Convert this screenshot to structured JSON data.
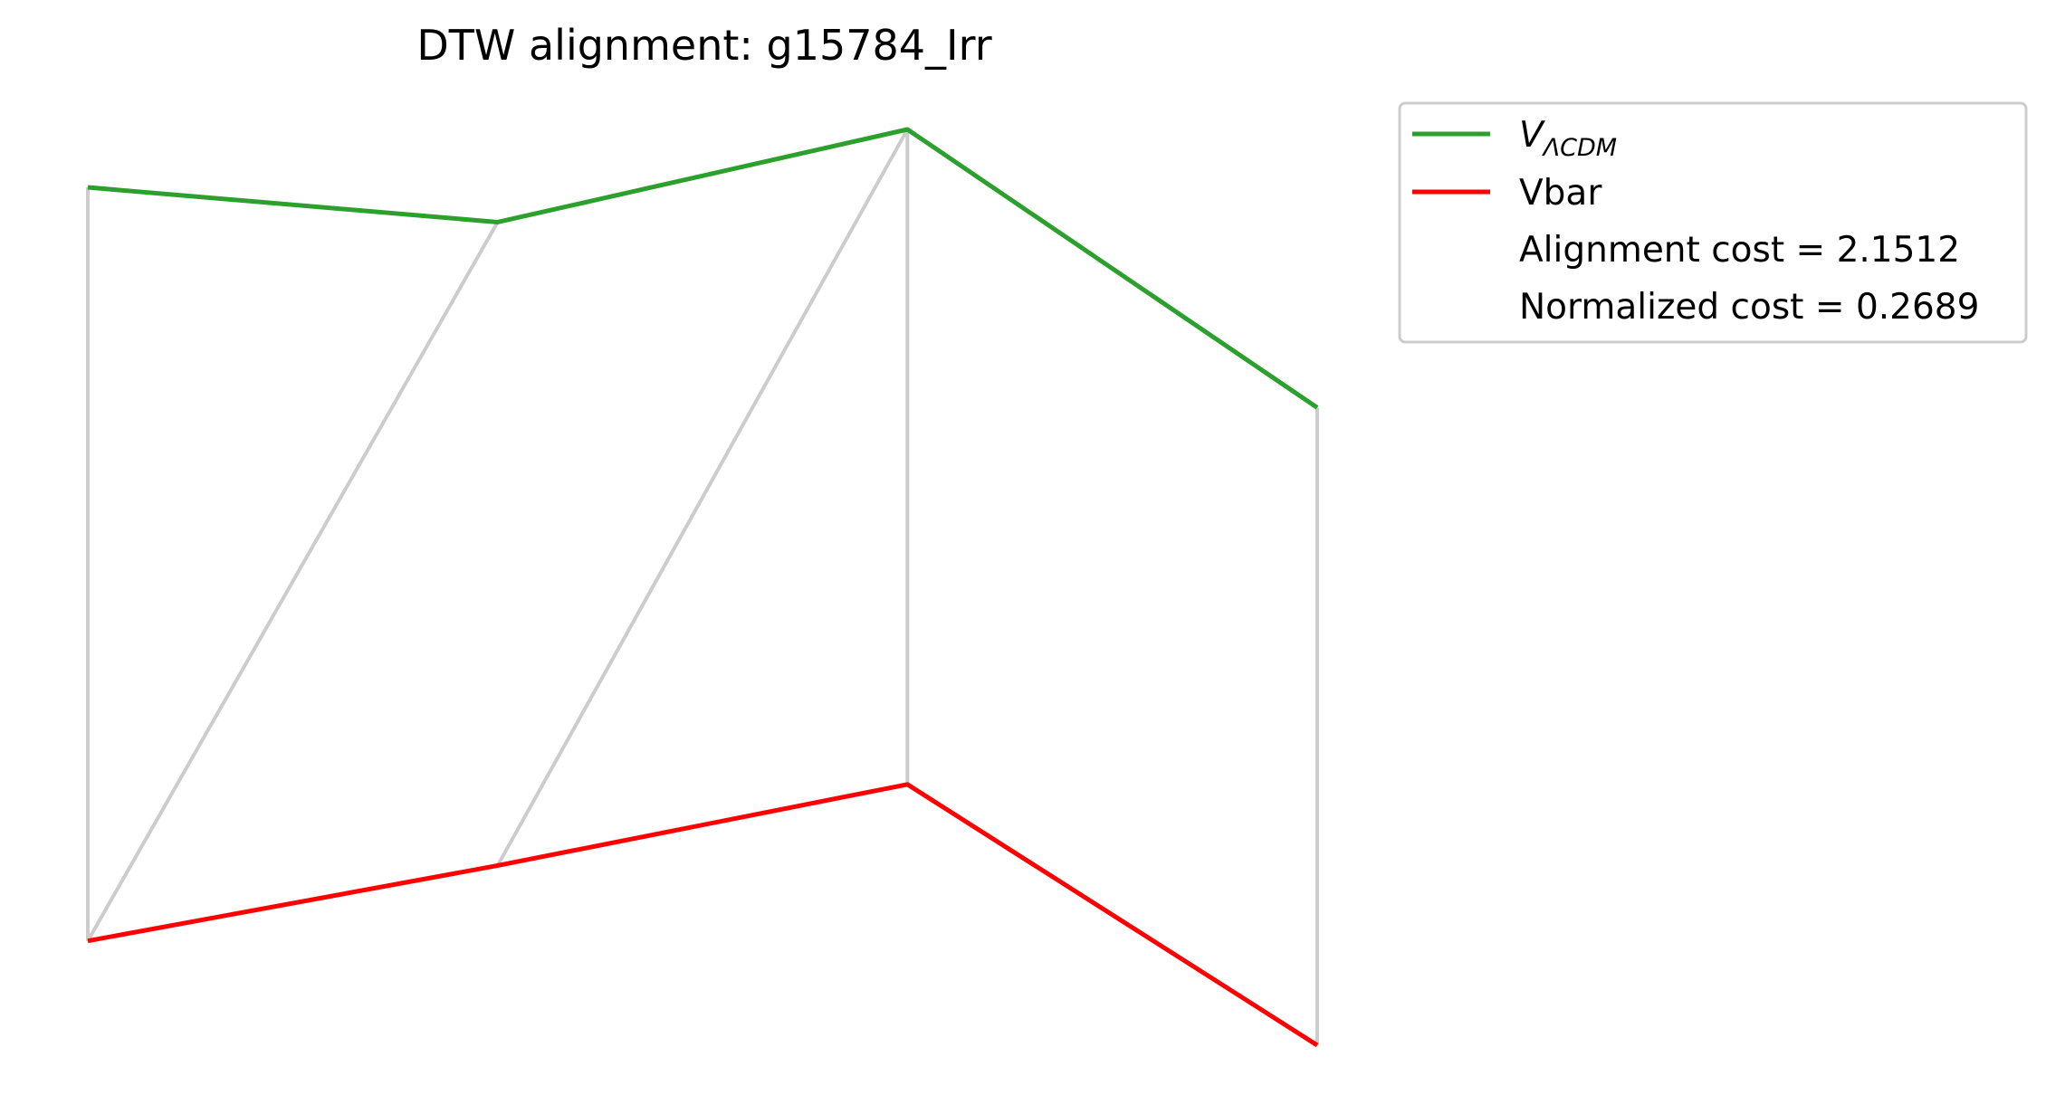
{
  "chart_data": {
    "type": "line",
    "title": "DTW alignment: g15784_Irr",
    "xlabel": "",
    "ylabel": "",
    "axes_visible": false,
    "grid": false,
    "legend_position": "outside-right-top",
    "series": [
      {
        "name": "V_ΛCDM",
        "legend_main": "V",
        "legend_sub": "ΛCDM",
        "color": "#2ca02c",
        "x": [
          0,
          1,
          2,
          3
        ],
        "values": [
          1.0,
          0.94,
          1.1,
          0.62
        ]
      },
      {
        "name": "Vbar",
        "color": "#ff0000",
        "x": [
          0,
          1,
          2,
          3
        ],
        "values": [
          -0.3,
          -0.17,
          -0.03,
          -0.48
        ]
      }
    ],
    "alignment_pairs": [
      [
        0,
        0
      ],
      [
        1,
        0
      ],
      [
        2,
        1
      ],
      [
        2,
        2
      ],
      [
        3,
        3
      ]
    ],
    "alignment_color": "#cccccc",
    "annotations": [
      "Alignment cost = 2.1512",
      "Normalized cost = 0.2689"
    ]
  }
}
